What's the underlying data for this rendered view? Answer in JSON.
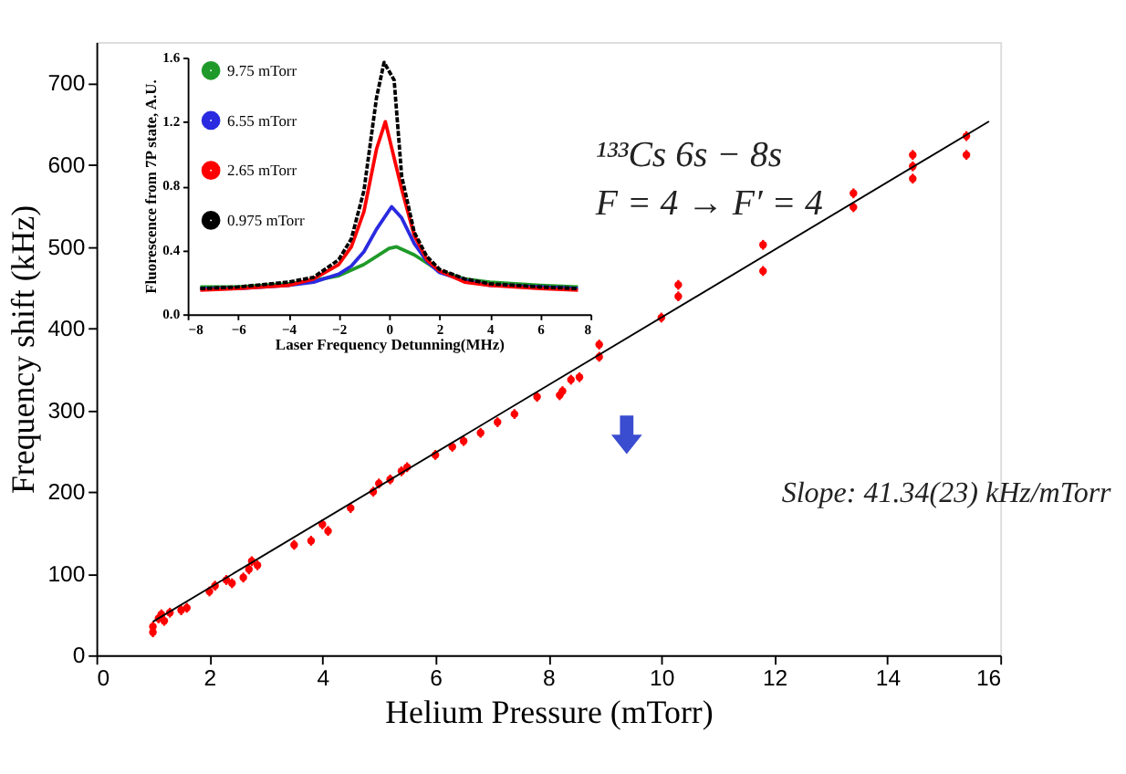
{
  "chart_data": [
    {
      "type": "scatter",
      "xlabel": "Helium Pressure (mTorr)",
      "ylabel": "Frequency shift (kHz)",
      "xlim": [
        0,
        16
      ],
      "xticks": [
        0,
        2,
        4,
        6,
        8,
        10,
        12,
        14,
        16
      ],
      "ylim": [
        0,
        750
      ],
      "yticks": [
        0,
        100,
        200,
        300,
        400,
        500,
        600,
        700
      ],
      "grid": false,
      "marker": "circle",
      "annotations": [
        "¹³³Cs 6s − 8s",
        "F = 4 → F′ = 4",
        "Slope: 41.34(23) kHz/mTorr"
      ],
      "series": [
        {
          "color": "#ff0000",
          "x": [
            1.0,
            1.0,
            1.1,
            1.15,
            1.2,
            1.3,
            1.5,
            1.6,
            2.0,
            2.1,
            2.3,
            2.4,
            2.6,
            2.7,
            2.75,
            2.85,
            3.5,
            3.8,
            4.0,
            4.1,
            4.5,
            4.9,
            5.0,
            5.2,
            5.4,
            5.5,
            6.0,
            6.3,
            6.5,
            6.8,
            7.1,
            7.4,
            7.8,
            8.2,
            8.25,
            8.4,
            8.55,
            8.9,
            8.9,
            10.0,
            10.3,
            10.3,
            11.8,
            11.8,
            13.4,
            13.4,
            14.45,
            14.45,
            14.45,
            15.4,
            15.4
          ],
          "values": [
            28,
            35,
            45,
            50,
            42,
            52,
            55,
            58,
            78,
            85,
            92,
            88,
            95,
            105,
            115,
            110,
            135,
            140,
            160,
            152,
            180,
            200,
            210,
            215,
            225,
            230,
            245,
            255,
            262,
            272,
            285,
            295,
            316,
            318,
            323,
            337,
            340,
            365,
            380,
            413,
            439,
            453,
            470,
            502,
            548,
            565,
            583,
            598,
            612,
            612,
            635
          ],
          "errors": [
            6,
            6,
            6,
            6,
            6,
            6,
            6,
            6,
            6,
            6,
            6,
            6,
            6,
            6,
            6,
            6,
            6,
            6,
            6,
            6,
            6,
            6,
            6,
            6,
            6,
            6,
            6,
            6,
            6,
            6,
            6,
            6,
            6,
            6,
            6,
            6,
            6,
            6,
            6,
            6,
            6,
            6,
            6,
            6,
            6,
            6,
            6,
            6,
            6,
            6,
            6
          ]
        },
        {
          "type": "line",
          "marker": "none",
          "color": "#000000",
          "x": [
            1.0,
            15.8
          ],
          "values": [
            41,
            653
          ]
        }
      ]
    },
    {
      "type": "line",
      "xlabel": "Laser Frequency Detunning(MHz)",
      "ylabel": "Fluorescence from 7P state, A.U.",
      "xlim": [
        -8,
        8
      ],
      "xticks": [
        -8,
        -6,
        -4,
        -2,
        0,
        2,
        4,
        6,
        8
      ],
      "ylim": [
        0,
        1.6
      ],
      "yticks": [
        {
          "value": 0,
          "label": "0.0"
        },
        0.4,
        0.8,
        1.2,
        1.6
      ],
      "grid": false,
      "legend": "top left",
      "series": [
        {
          "name": "9.75 mTorr",
          "color": "#1f9a2a",
          "line_style": "solid",
          "x": [
            -7.5,
            -6,
            -4,
            -3,
            -2,
            -1,
            0,
            0.3,
            1,
            2,
            3,
            4,
            6,
            7.5
          ],
          "values": [
            0.17,
            0.17,
            0.19,
            0.21,
            0.24,
            0.31,
            0.41,
            0.42,
            0.37,
            0.27,
            0.22,
            0.2,
            0.18,
            0.17
          ]
        },
        {
          "name": "6.55 mTorr",
          "color": "#2a2ae0",
          "line_style": "solid",
          "x": [
            -7.5,
            -6,
            -4,
            -3,
            -2,
            -1.5,
            -1,
            -0.5,
            0.1,
            0.5,
            1,
            1.5,
            2,
            3,
            4,
            6,
            7.5
          ],
          "values": [
            0.16,
            0.16,
            0.18,
            0.2,
            0.25,
            0.3,
            0.39,
            0.53,
            0.67,
            0.6,
            0.44,
            0.33,
            0.26,
            0.21,
            0.18,
            0.17,
            0.16
          ]
        },
        {
          "name": "2.65 mTorr",
          "color": "#ff0000",
          "line_style": "solid",
          "x": [
            -7.5,
            -6,
            -4,
            -3,
            -2,
            -1.5,
            -1,
            -0.5,
            -0.15,
            0.5,
            1,
            1.5,
            2,
            3,
            4,
            6,
            7.5
          ],
          "values": [
            0.15,
            0.16,
            0.18,
            0.22,
            0.31,
            0.42,
            0.64,
            1.03,
            1.2,
            0.78,
            0.49,
            0.34,
            0.27,
            0.2,
            0.18,
            0.16,
            0.15
          ]
        },
        {
          "name": "0.975 mTorr",
          "color": "#000000",
          "line_style": "dashed",
          "x": [
            -7.5,
            -6,
            -4,
            -3,
            -2,
            -1.5,
            -1,
            -0.5,
            -0.2,
            0.2,
            0.5,
            1,
            1.5,
            2,
            3,
            4,
            6,
            7.5
          ],
          "values": [
            0.16,
            0.17,
            0.2,
            0.23,
            0.34,
            0.47,
            0.77,
            1.35,
            1.57,
            1.46,
            0.86,
            0.51,
            0.36,
            0.28,
            0.22,
            0.19,
            0.17,
            0.16
          ]
        }
      ]
    }
  ]
}
